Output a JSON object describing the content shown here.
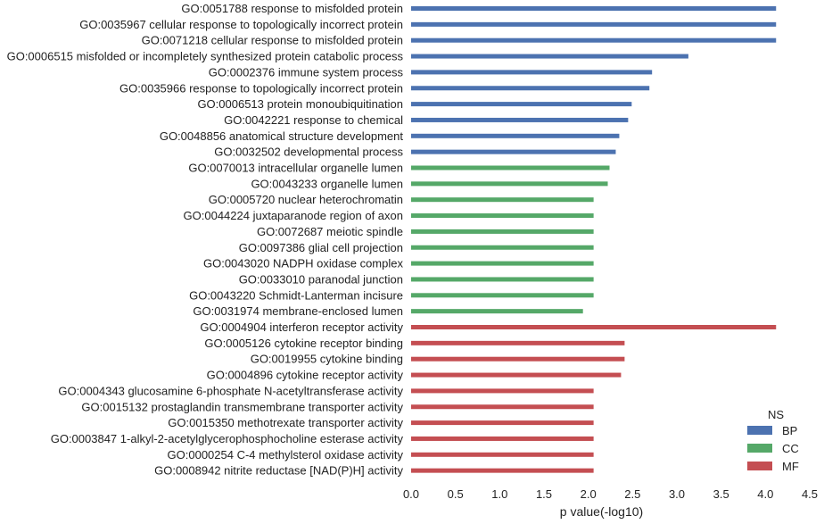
{
  "chart_data": {
    "type": "bar",
    "orientation": "horizontal",
    "xlabel": "p value(-log10)",
    "xlim": [
      0,
      4.5
    ],
    "xticks": [
      "0.0",
      "0.5",
      "1.0",
      "1.5",
      "2.0",
      "2.5",
      "3.0",
      "3.5",
      "4.0",
      "4.5"
    ],
    "grid": false,
    "legend": {
      "title": "NS",
      "placement": "bottom-right",
      "entries": [
        {
          "name": "BP",
          "color": "#4c72b0"
        },
        {
          "name": "CC",
          "color": "#55a868"
        },
        {
          "name": "MF",
          "color": "#c44e52"
        }
      ]
    },
    "bars": [
      {
        "label": "GO:0051788 response to misfolded protein",
        "value": 4.12,
        "ns": "BP"
      },
      {
        "label": "GO:0035967 cellular response to topologically incorrect protein",
        "value": 4.12,
        "ns": "BP"
      },
      {
        "label": "GO:0071218 cellular response to misfolded protein",
        "value": 4.12,
        "ns": "BP"
      },
      {
        "label": "GO:0006515 misfolded or incompletely synthesized protein catabolic process",
        "value": 3.13,
        "ns": "BP"
      },
      {
        "label": "GO:0002376 immune system process",
        "value": 2.72,
        "ns": "BP"
      },
      {
        "label": "GO:0035966 response to topologically incorrect protein",
        "value": 2.69,
        "ns": "BP"
      },
      {
        "label": "GO:0006513 protein monoubiquitination",
        "value": 2.49,
        "ns": "BP"
      },
      {
        "label": "GO:0042221 response to chemical",
        "value": 2.45,
        "ns": "BP"
      },
      {
        "label": "GO:0048856 anatomical structure development",
        "value": 2.35,
        "ns": "BP"
      },
      {
        "label": "GO:0032502 developmental process",
        "value": 2.31,
        "ns": "BP"
      },
      {
        "label": "GO:0070013 intracellular organelle lumen",
        "value": 2.24,
        "ns": "CC"
      },
      {
        "label": "GO:0043233 organelle lumen",
        "value": 2.22,
        "ns": "CC"
      },
      {
        "label": "GO:0005720 nuclear heterochromatin",
        "value": 2.06,
        "ns": "CC"
      },
      {
        "label": "GO:0044224 juxtaparanode region of axon",
        "value": 2.06,
        "ns": "CC"
      },
      {
        "label": "GO:0072687 meiotic spindle",
        "value": 2.06,
        "ns": "CC"
      },
      {
        "label": "GO:0097386 glial cell projection",
        "value": 2.06,
        "ns": "CC"
      },
      {
        "label": "GO:0043020 NADPH oxidase complex",
        "value": 2.06,
        "ns": "CC"
      },
      {
        "label": "GO:0033010 paranodal junction",
        "value": 2.06,
        "ns": "CC"
      },
      {
        "label": "GO:0043220 Schmidt-Lanterman incisure",
        "value": 2.06,
        "ns": "CC"
      },
      {
        "label": "GO:0031974 membrane-enclosed lumen",
        "value": 1.94,
        "ns": "CC"
      },
      {
        "label": "GO:0004904 interferon receptor activity",
        "value": 4.12,
        "ns": "MF"
      },
      {
        "label": "GO:0005126 cytokine receptor binding",
        "value": 2.41,
        "ns": "MF"
      },
      {
        "label": "GO:0019955 cytokine binding",
        "value": 2.41,
        "ns": "MF"
      },
      {
        "label": "GO:0004896 cytokine receptor activity",
        "value": 2.37,
        "ns": "MF"
      },
      {
        "label": "GO:0004343 glucosamine 6-phosphate N-acetyltransferase activity",
        "value": 2.06,
        "ns": "MF"
      },
      {
        "label": "GO:0015132 prostaglandin transmembrane transporter activity",
        "value": 2.06,
        "ns": "MF"
      },
      {
        "label": "GO:0015350 methotrexate transporter activity",
        "value": 2.06,
        "ns": "MF"
      },
      {
        "label": "GO:0003847 1-alkyl-2-acetylglycerophosphocholine esterase activity",
        "value": 2.06,
        "ns": "MF"
      },
      {
        "label": "GO:0000254 C-4 methylsterol oxidase activity",
        "value": 2.06,
        "ns": "MF"
      },
      {
        "label": "GO:0008942 nitrite reductase [NAD(P)H] activity",
        "value": 2.06,
        "ns": "MF"
      }
    ]
  }
}
